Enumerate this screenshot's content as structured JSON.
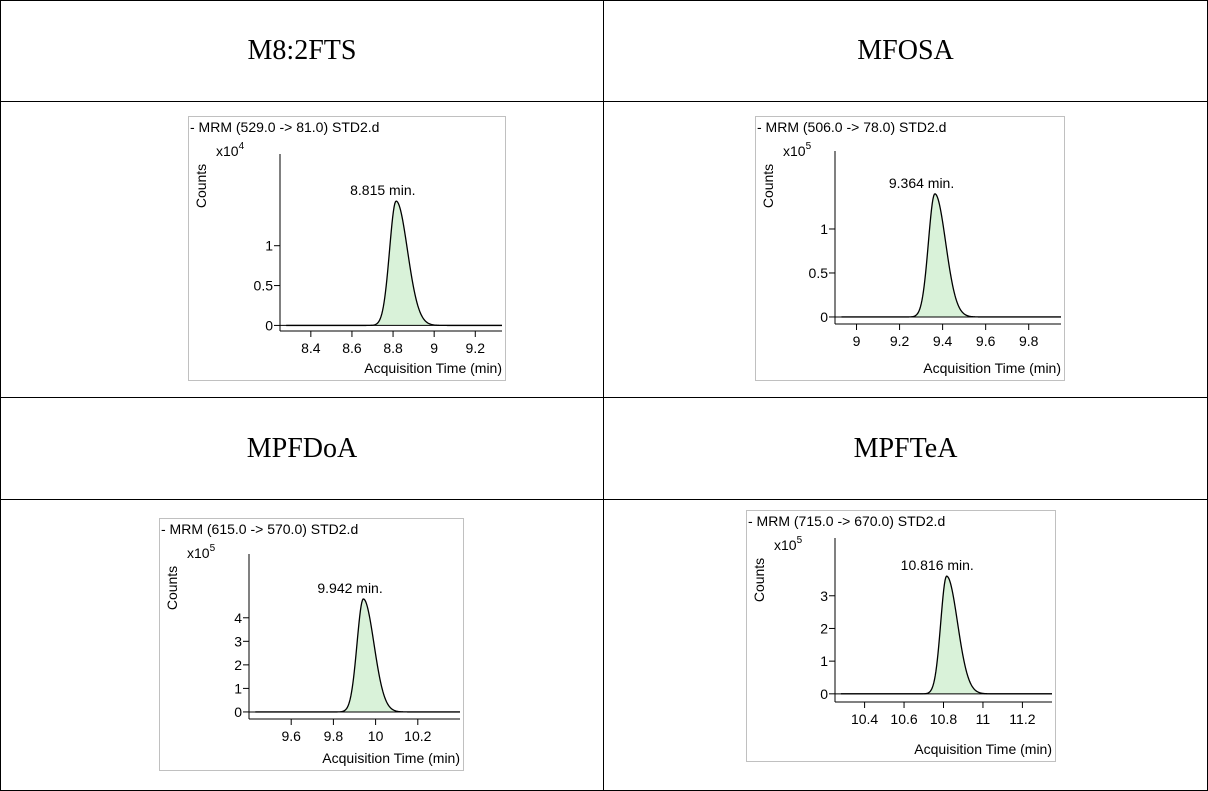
{
  "panels": [
    {
      "compound": "M8:2FTS",
      "chart_data": {
        "type": "line",
        "title": "- MRM (529.0 -> 81.0) STD2.d",
        "xlabel": "Acquisition Time (min)",
        "ylabel": "Counts",
        "y_multiplier_base": "x10",
        "y_multiplier_exp": "4",
        "xlim": [
          8.25,
          9.33
        ],
        "ylim": [
          -0.07,
          2.0
        ],
        "xticks": [
          8.4,
          8.6,
          8.8,
          9.0,
          9.2
        ],
        "xtick_labels": [
          "8.4",
          "8.6",
          "8.8",
          "9",
          "9.2"
        ],
        "yticks": [
          0,
          0.5,
          1
        ],
        "ytick_labels": [
          "0",
          "0.5",
          "1"
        ],
        "peak_label": "8.815 min.",
        "peak": {
          "center": 8.815,
          "height": 1.56,
          "sigma_left": 0.032,
          "sigma_right": 0.055
        },
        "integration_range": [
          8.7,
          9.03
        ]
      }
    },
    {
      "compound": "MFOSA",
      "chart_data": {
        "type": "line",
        "title": "- MRM (506.0 -> 78.0) STD2.d",
        "xlabel": "Acquisition Time (min)",
        "ylabel": "Counts",
        "y_multiplier_base": "x10",
        "y_multiplier_exp": "5",
        "xlim": [
          8.9,
          9.95
        ],
        "ylim": [
          -0.08,
          1.75
        ],
        "xticks": [
          9.0,
          9.2,
          9.4,
          9.6,
          9.8
        ],
        "xtick_labels": [
          "9",
          "9.2",
          "9.4",
          "9.6",
          "9.8"
        ],
        "yticks": [
          0,
          0.5,
          1
        ],
        "ytick_labels": [
          "0",
          "0.5",
          "1"
        ],
        "peak_label": "9.364 min.",
        "peak": {
          "center": 9.364,
          "height": 1.4,
          "sigma_left": 0.03,
          "sigma_right": 0.05
        },
        "integration_range": [
          9.25,
          9.58
        ]
      }
    },
    {
      "compound": "MPFDoA",
      "chart_data": {
        "type": "line",
        "title": "- MRM (615.0 -> 570.0) STD2.d",
        "xlabel": "Acquisition Time (min)",
        "ylabel": "Counts",
        "y_multiplier_base": "x10",
        "y_multiplier_exp": "5",
        "xlim": [
          9.4,
          10.4
        ],
        "ylim": [
          -0.3,
          6.2
        ],
        "xticks": [
          9.6,
          9.8,
          10.0,
          10.2
        ],
        "xtick_labels": [
          "9.6",
          "9.8",
          "10",
          "10.2"
        ],
        "yticks": [
          0,
          1,
          2,
          3,
          4
        ],
        "ytick_labels": [
          "0",
          "1",
          "2",
          "3",
          "4"
        ],
        "peak_label": "9.942 min.",
        "peak": {
          "center": 9.942,
          "height": 4.8,
          "sigma_left": 0.03,
          "sigma_right": 0.05
        },
        "integration_range": [
          9.83,
          10.16
        ]
      }
    },
    {
      "compound": "MPFTeA",
      "chart_data": {
        "type": "line",
        "title": "- MRM (715.0 -> 670.0) STD2.d",
        "xlabel": "Acquisition Time (min)",
        "ylabel": "Counts",
        "y_multiplier_base": "x10",
        "y_multiplier_exp": "5",
        "xlim": [
          10.25,
          11.35
        ],
        "ylim": [
          -0.25,
          4.4
        ],
        "xticks": [
          10.4,
          10.6,
          10.8,
          11.0,
          11.2
        ],
        "xtick_labels": [
          "10.4",
          "10.6",
          "10.8",
          "11",
          "11.2"
        ],
        "yticks": [
          0,
          1,
          2,
          3
        ],
        "ytick_labels": [
          "0",
          "1",
          "2",
          "3"
        ],
        "peak_label": "10.816 min.",
        "peak": {
          "center": 10.816,
          "height": 3.6,
          "sigma_left": 0.03,
          "sigma_right": 0.055
        },
        "integration_range": [
          10.7,
          11.06
        ]
      }
    }
  ],
  "colors": {
    "fill": "#d9f2d9",
    "line": "#000000",
    "frame": "#c0c0c0"
  }
}
